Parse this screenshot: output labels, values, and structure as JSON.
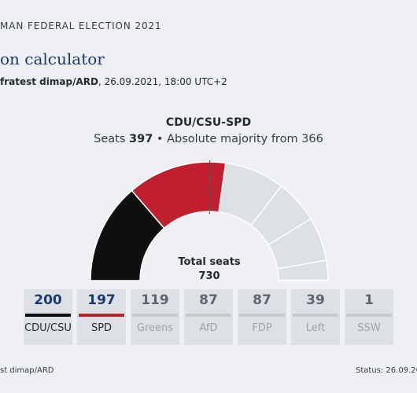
{
  "header": {
    "kicker": "MAN FEDERAL ELECTION 2021",
    "title": "on calculator",
    "source_bold": "fratest dimap/ARD",
    "source_rest": ", 26.09.2021, 18:00 UTC+2"
  },
  "summary": {
    "coalition": "CDU/CSU-SPD",
    "seats_label": "Seats",
    "seats": "397",
    "majority_text": "• Absolute majority from 366"
  },
  "chart_data": {
    "type": "semicircle",
    "total_label": "Total seats",
    "total": 730,
    "majority": 366,
    "segments": [
      {
        "name": "CDU/CSU",
        "value": 200,
        "color": "#0f0f0f",
        "selected": true
      },
      {
        "name": "SPD",
        "value": 197,
        "color": "#bf1f2f",
        "selected": true
      },
      {
        "name": "Greens",
        "value": 119,
        "color": "#dde0e5",
        "selected": false
      },
      {
        "name": "AfD",
        "value": 87,
        "color": "#dde0e5",
        "selected": false
      },
      {
        "name": "FDP",
        "value": 87,
        "color": "#dde0e5",
        "selected": false
      },
      {
        "name": "Left",
        "value": 39,
        "color": "#dde0e5",
        "selected": false
      },
      {
        "name": "SSW",
        "value": 1,
        "color": "#dde0e5",
        "selected": false
      }
    ]
  },
  "parties": [
    {
      "name": "CDU/CSU",
      "seats": "200",
      "bar_color": "#0f0f0f",
      "active": true
    },
    {
      "name": "SPD",
      "seats": "197",
      "bar_color": "#bf1f2f",
      "active": true
    },
    {
      "name": "Greens",
      "seats": "119",
      "bar_color": "#c6cad1",
      "active": false
    },
    {
      "name": "AfD",
      "seats": "87",
      "bar_color": "#c6cad1",
      "active": false
    },
    {
      "name": "FDP",
      "seats": "87",
      "bar_color": "#c6cad1",
      "active": false
    },
    {
      "name": "Left",
      "seats": "39",
      "bar_color": "#c6cad1",
      "active": false
    },
    {
      "name": "SSW",
      "seats": "1",
      "bar_color": "#c6cad1",
      "active": false
    }
  ],
  "footer": {
    "source": "st dimap/ARD",
    "status": "Status: 26.09.202"
  }
}
